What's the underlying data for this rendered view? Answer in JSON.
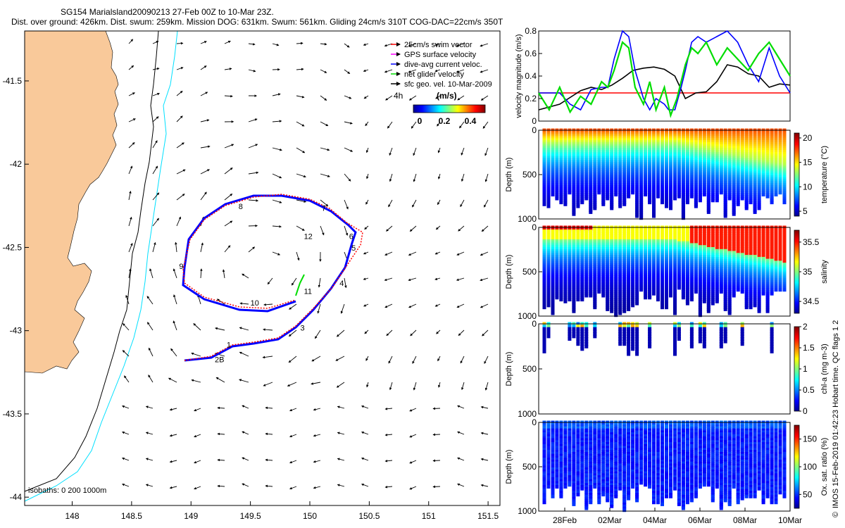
{
  "title_line1": "SG154 Marialsland20090213 27-Feb 00Z to 10-Mar 23Z.",
  "title_line2": "Dist. over ground: 426km. Dist. swum: 259km. Mission DOG: 631km. Swum: 561km. Gliding 24cm/s 310T COG-DAC=22cm/s 350T",
  "colors": {
    "land": "#f9c99a",
    "swim_vector": "#ff0000",
    "gps_velocity": "#ff00ff",
    "current": "#0000ff",
    "net_velocity": "#00dd00",
    "isobath_200": "#000000",
    "isobath_1000": "#00e0ff"
  },
  "chart_data": [
    {
      "type": "map",
      "id": "map",
      "x_ticks": [
        "148",
        "148.5",
        "149",
        "149.5",
        "150",
        "150.5",
        "151",
        "151.5"
      ],
      "x_tick_values": [
        148,
        148.5,
        149,
        149.5,
        150,
        150.5,
        151,
        151.5
      ],
      "y_ticks": [
        "-41.5",
        "-42",
        "-42.5",
        "-43",
        "-43.5",
        "-44"
      ],
      "y_tick_values": [
        -41.5,
        -42,
        -42.5,
        -43,
        -43.5,
        -44
      ],
      "xlim": [
        147.6,
        151.6
      ],
      "ylim": [
        -44.05,
        -41.2
      ],
      "legend": [
        {
          "label": "25cm/s swim vector",
          "color": "#ff0000"
        },
        {
          "label": "GPS surface velocity",
          "color": "#ff00ff"
        },
        {
          "label": "dive-avg current veloc.",
          "color": "#0000ff"
        },
        {
          "label": "net glider velocity",
          "color": "#00dd00"
        },
        {
          "label": "sfc geo. vel. 10-Mar-2009",
          "color": "#000000"
        }
      ],
      "legend_position": "top-right",
      "colorbar_label": "(m/s)",
      "colorbar_ticks": [
        "0",
        "0.2",
        "0.4"
      ],
      "colorbar_corner_label": "4h",
      "isobath_label": "isobaths: 0   200  1000m",
      "day_labels": [
        {
          "text": "1",
          "lon": 149.3,
          "lat": -43.1
        },
        {
          "text": "2B",
          "lon": 149.2,
          "lat": -43.19
        },
        {
          "text": "3",
          "lon": 149.92,
          "lat": -43.0
        },
        {
          "text": "4",
          "lon": 150.25,
          "lat": -42.73
        },
        {
          "text": "5",
          "lon": 150.35,
          "lat": -42.52
        },
        {
          "text": "6",
          "lon": 150.33,
          "lat": -42.45
        },
        {
          "text": "7",
          "lon": 150.1,
          "lat": -42.28
        },
        {
          "text": "8",
          "lon": 149.4,
          "lat": -42.27
        },
        {
          "text": "9",
          "lon": 148.9,
          "lat": -42.63
        },
        {
          "text": "10",
          "lon": 149.5,
          "lat": -42.85
        },
        {
          "text": "11",
          "lon": 149.95,
          "lat": -42.78
        },
        {
          "text": "12",
          "lon": 149.95,
          "lat": -42.45
        }
      ]
    },
    {
      "type": "line",
      "id": "velocity",
      "ylabel": "velocity magnitude (m/s)",
      "y_ticks": [
        "0",
        "0.2",
        "0.4",
        "0.6",
        "0.8"
      ],
      "ylim": [
        0,
        0.8
      ],
      "xlim": [
        0,
        12
      ],
      "series": [
        {
          "color": "#ff0000",
          "x": [
            0,
            12
          ],
          "y": [
            0.25,
            0.25
          ]
        },
        {
          "color": "#000000",
          "x": [
            0,
            1,
            2,
            2.5,
            3,
            3.5,
            4,
            4.5,
            5,
            5.5,
            6,
            6.5,
            7,
            7.5,
            8,
            8.5,
            9,
            9.5,
            10,
            10.5,
            11,
            11.5,
            12
          ],
          "y": [
            0.1,
            0.15,
            0.27,
            0.3,
            0.28,
            0.32,
            0.38,
            0.45,
            0.47,
            0.48,
            0.46,
            0.4,
            0.2,
            0.25,
            0.26,
            0.35,
            0.5,
            0.48,
            0.42,
            0.4,
            0.3,
            0.33,
            0.32
          ]
        },
        {
          "color": "#0000ff",
          "x": [
            0,
            1,
            1.5,
            2,
            2.5,
            3,
            3.3,
            3.6,
            4,
            4.3,
            4.6,
            5,
            5.3,
            5.6,
            6,
            6.2,
            6.5,
            6.8,
            7,
            7.3,
            7.6,
            8,
            8.5,
            9,
            9.5,
            10,
            10.5,
            11,
            11.5,
            12
          ],
          "y": [
            0.25,
            0.25,
            0.15,
            0.1,
            0.28,
            0.3,
            0.3,
            0.55,
            0.8,
            0.75,
            0.45,
            0.2,
            0.1,
            0.2,
            0.15,
            0.1,
            0.1,
            0.3,
            0.45,
            0.7,
            0.75,
            0.7,
            0.75,
            0.8,
            0.7,
            0.5,
            0.35,
            0.65,
            0.4,
            0.25
          ]
        },
        {
          "color": "#00dd00",
          "x": [
            0,
            0.5,
            1,
            1.5,
            2,
            2.5,
            3,
            3.3,
            3.6,
            4,
            4.3,
            4.6,
            5,
            5.3,
            5.6,
            6,
            6.3,
            6.6,
            7,
            7.3,
            7.6,
            8,
            8.5,
            9,
            9.5,
            10,
            10.5,
            11,
            11.5,
            12
          ],
          "y": [
            0.25,
            0.1,
            0.3,
            0.08,
            0.22,
            0.15,
            0.35,
            0.3,
            0.45,
            0.7,
            0.65,
            0.3,
            0.15,
            0.35,
            0.1,
            0.3,
            0.05,
            0.2,
            0.5,
            0.65,
            0.6,
            0.7,
            0.5,
            0.65,
            0.55,
            0.45,
            0.6,
            0.7,
            0.55,
            0.4
          ]
        }
      ]
    },
    {
      "type": "scatter-section",
      "id": "temperature",
      "ylabel": "Depth (m)",
      "y_ticks": [
        "0",
        "500",
        "1000"
      ],
      "ylim": [
        1000,
        0
      ],
      "colorbar_label": "temperature (°C)",
      "colorbar_ticks": [
        "5",
        "10",
        "15",
        "20"
      ],
      "clim": [
        4,
        21
      ]
    },
    {
      "type": "scatter-section",
      "id": "salinity",
      "ylabel": "Depth (m)",
      "y_ticks": [
        "0",
        "500",
        "1000"
      ],
      "ylim": [
        1000,
        0
      ],
      "colorbar_label": "salinity",
      "colorbar_ticks": [
        "34.5",
        "35",
        "35.5"
      ],
      "clim": [
        34.3,
        35.7
      ]
    },
    {
      "type": "scatter-section",
      "id": "chla",
      "ylabel": "Depth (m)",
      "y_ticks": [
        "0",
        "500",
        "1000"
      ],
      "ylim": [
        1000,
        0
      ],
      "colorbar_label": "chl-a (mg m-3)",
      "colorbar_ticks": [
        "0",
        "0.5",
        "1",
        "1.5",
        "2"
      ],
      "clim": [
        0,
        2
      ]
    },
    {
      "type": "scatter-section",
      "id": "oxygen",
      "ylabel": "Depth (m)",
      "y_ticks": [
        "0",
        "500",
        "1000"
      ],
      "ylim": [
        1000,
        0
      ],
      "colorbar_label": "Ox. sat. ratio (%)",
      "colorbar_ticks": [
        "50",
        "100",
        "150"
      ],
      "clim": [
        25,
        175
      ],
      "x_ticks": [
        "28Feb",
        "02Mar",
        "04Mar",
        "06Mar",
        "08Mar",
        "10Mar"
      ]
    }
  ],
  "footer": "IMOS 15-Feb-2019 01:42:23 Hobart time. QC flags 1  2",
  "footer_symbol": "©"
}
